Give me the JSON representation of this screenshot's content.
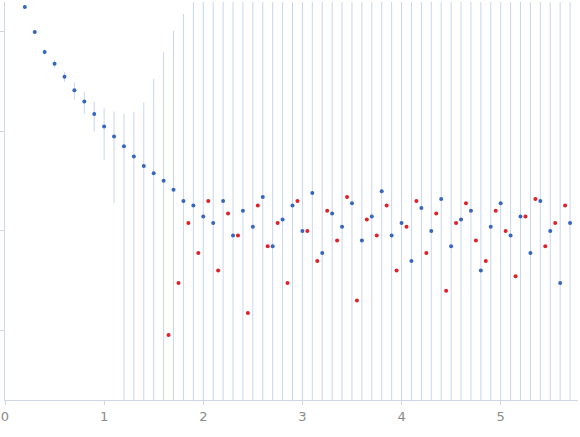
{
  "chart_data": {
    "type": "scatter",
    "log": "y",
    "tick_labels": "x",
    "xlim": [
      0,
      5.78
    ],
    "ylim": [
      0.0002,
      2
    ],
    "xticks": [
      0,
      1,
      2,
      3,
      4,
      5
    ],
    "yticks": [
      0.001,
      0.01,
      0.1,
      1
    ],
    "grid": false,
    "series": [
      {
        "color": "#3566c0",
        "error_color": "#c8d6ee",
        "x": [
          0.2,
          0.3,
          0.4,
          0.5,
          0.6,
          0.7,
          0.8,
          0.9,
          1.0,
          1.1,
          1.2,
          1.3,
          1.4,
          1.5,
          1.6,
          1.7,
          1.8,
          1.9,
          2.0,
          2.1,
          2.2,
          2.3,
          2.4,
          2.5,
          2.6,
          2.7,
          2.8,
          2.9,
          3.0,
          3.1,
          3.2,
          3.3,
          3.4,
          3.5,
          3.6,
          3.7,
          3.8,
          3.9,
          4.0,
          4.1,
          4.2,
          4.3,
          4.4,
          4.5,
          4.6,
          4.7,
          4.8,
          4.9,
          5.0,
          5.1,
          5.2,
          5.3,
          5.4,
          5.5,
          5.6,
          5.7
        ],
        "values": [
          1.78,
          1.0,
          0.63,
          0.48,
          0.355,
          0.26,
          0.2,
          0.15,
          0.112,
          0.089,
          0.071,
          0.056,
          0.045,
          0.038,
          0.032,
          0.026,
          0.02,
          0.018,
          0.014,
          0.012,
          0.02,
          0.009,
          0.016,
          0.011,
          0.022,
          0.007,
          0.013,
          0.018,
          0.01,
          0.024,
          0.006,
          0.015,
          0.011,
          0.019,
          0.008,
          0.014,
          0.025,
          0.009,
          0.012,
          0.005,
          0.017,
          0.01,
          0.021,
          0.007,
          0.013,
          0.016,
          0.004,
          0.011,
          0.019,
          0.009,
          0.014,
          0.006,
          0.02,
          0.01,
          0.003,
          0.012
        ],
        "errors": [
          0.05,
          0.05,
          0.04,
          0.04,
          0.04,
          0.05,
          0.05,
          0.05,
          0.06,
          0.07,
          0.08,
          0.1,
          0.15,
          0.3,
          0.6,
          1,
          1.5,
          2,
          2.5,
          3,
          2,
          3,
          4,
          2.5,
          3,
          5,
          3,
          2,
          4,
          3,
          5,
          2.5,
          3,
          4,
          3,
          5,
          2,
          3,
          4,
          5,
          3,
          2.5,
          4,
          3,
          5,
          3,
          4,
          2,
          3,
          5,
          4,
          3,
          2.5,
          4,
          5,
          3
        ]
      },
      {
        "color": "#e02228",
        "x": [
          1.65,
          1.75,
          1.85,
          1.95,
          2.05,
          2.15,
          2.25,
          2.35,
          2.45,
          2.55,
          2.65,
          2.75,
          2.85,
          2.95,
          3.05,
          3.15,
          3.25,
          3.35,
          3.45,
          3.55,
          3.65,
          3.75,
          3.85,
          3.95,
          4.05,
          4.15,
          4.25,
          4.35,
          4.45,
          4.55,
          4.65,
          4.75,
          4.85,
          4.95,
          5.05,
          5.15,
          5.25,
          5.35,
          5.45,
          5.55,
          5.65
        ],
        "values": [
          0.0009,
          0.003,
          0.012,
          0.006,
          0.02,
          0.004,
          0.015,
          0.009,
          0.0015,
          0.018,
          0.007,
          0.012,
          0.003,
          0.02,
          0.01,
          0.005,
          0.016,
          0.008,
          0.022,
          0.002,
          0.013,
          0.009,
          0.018,
          0.004,
          0.011,
          0.02,
          0.006,
          0.015,
          0.0025,
          0.012,
          0.019,
          0.008,
          0.005,
          0.016,
          0.01,
          0.0035,
          0.014,
          0.021,
          0.007,
          0.012,
          0.018
        ]
      }
    ]
  }
}
